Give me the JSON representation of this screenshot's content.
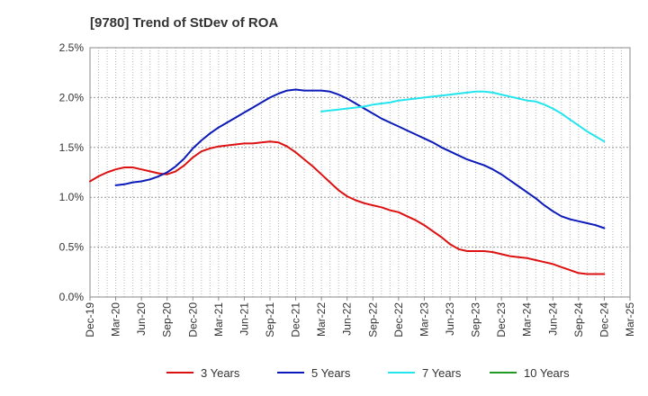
{
  "chart_data": {
    "type": "line",
    "title": "[9780]  Trend of StDev of ROA",
    "xlabel": "",
    "ylabel": "",
    "x_ticks": [
      "Dec-19",
      "Mar-20",
      "Jun-20",
      "Sep-20",
      "Dec-20",
      "Mar-21",
      "Jun-21",
      "Sep-21",
      "Dec-21",
      "Mar-22",
      "Jun-22",
      "Sep-22",
      "Dec-22",
      "Mar-23",
      "Jun-23",
      "Sep-23",
      "Dec-23",
      "Mar-24",
      "Jun-24",
      "Sep-24",
      "Dec-24",
      "Mar-25"
    ],
    "y_ticks": [
      "0.0%",
      "0.5%",
      "1.0%",
      "1.5%",
      "2.0%",
      "2.5%"
    ],
    "ylim": [
      0,
      2.5
    ],
    "y_unit": "%",
    "grid": true,
    "legend_position": "bottom",
    "series": [
      {
        "name": "3 Years",
        "color": "#dd1111",
        "points": [
          [
            "Dec-19",
            1.16
          ],
          [
            "Jan-20",
            1.21
          ],
          [
            "Feb-20",
            1.25
          ],
          [
            "Mar-20",
            1.28
          ],
          [
            "Apr-20",
            1.3
          ],
          [
            "May-20",
            1.3
          ],
          [
            "Jun-20",
            1.28
          ],
          [
            "Jul-20",
            1.26
          ],
          [
            "Aug-20",
            1.24
          ],
          [
            "Sep-20",
            1.23
          ],
          [
            "Oct-20",
            1.26
          ],
          [
            "Nov-20",
            1.32
          ],
          [
            "Dec-20",
            1.4
          ],
          [
            "Jan-21",
            1.46
          ],
          [
            "Feb-21",
            1.49
          ],
          [
            "Mar-21",
            1.51
          ],
          [
            "Apr-21",
            1.52
          ],
          [
            "May-21",
            1.53
          ],
          [
            "Jun-21",
            1.54
          ],
          [
            "Jul-21",
            1.54
          ],
          [
            "Aug-21",
            1.55
          ],
          [
            "Sep-21",
            1.56
          ],
          [
            "Oct-21",
            1.55
          ],
          [
            "Nov-21",
            1.51
          ],
          [
            "Dec-21",
            1.45
          ],
          [
            "Jan-22",
            1.38
          ],
          [
            "Feb-22",
            1.31
          ],
          [
            "Mar-22",
            1.23
          ],
          [
            "Apr-22",
            1.15
          ],
          [
            "May-22",
            1.07
          ],
          [
            "Jun-22",
            1.01
          ],
          [
            "Jul-22",
            0.97
          ],
          [
            "Aug-22",
            0.94
          ],
          [
            "Sep-22",
            0.92
          ],
          [
            "Oct-22",
            0.9
          ],
          [
            "Nov-22",
            0.87
          ],
          [
            "Dec-22",
            0.85
          ],
          [
            "Jan-23",
            0.81
          ],
          [
            "Feb-23",
            0.77
          ],
          [
            "Mar-23",
            0.72
          ],
          [
            "Apr-23",
            0.66
          ],
          [
            "May-23",
            0.6
          ],
          [
            "Jun-23",
            0.53
          ],
          [
            "Jul-23",
            0.48
          ],
          [
            "Aug-23",
            0.46
          ],
          [
            "Sep-23",
            0.46
          ],
          [
            "Oct-23",
            0.46
          ],
          [
            "Nov-23",
            0.45
          ],
          [
            "Dec-23",
            0.43
          ],
          [
            "Jan-24",
            0.41
          ],
          [
            "Feb-24",
            0.4
          ],
          [
            "Mar-24",
            0.39
          ],
          [
            "Apr-24",
            0.37
          ],
          [
            "May-24",
            0.35
          ],
          [
            "Jun-24",
            0.33
          ],
          [
            "Jul-24",
            0.3
          ],
          [
            "Aug-24",
            0.27
          ],
          [
            "Sep-24",
            0.24
          ],
          [
            "Oct-24",
            0.23
          ],
          [
            "Nov-24",
            0.23
          ],
          [
            "Dec-24",
            0.23
          ]
        ]
      },
      {
        "name": "5 Years",
        "color": "#0b1ab8",
        "points": [
          [
            "Mar-20",
            1.12
          ],
          [
            "Apr-20",
            1.13
          ],
          [
            "May-20",
            1.15
          ],
          [
            "Jun-20",
            1.16
          ],
          [
            "Jul-20",
            1.18
          ],
          [
            "Aug-20",
            1.21
          ],
          [
            "Sep-20",
            1.25
          ],
          [
            "Oct-20",
            1.31
          ],
          [
            "Nov-20",
            1.39
          ],
          [
            "Dec-20",
            1.49
          ],
          [
            "Jan-21",
            1.57
          ],
          [
            "Feb-21",
            1.64
          ],
          [
            "Mar-21",
            1.7
          ],
          [
            "Apr-21",
            1.75
          ],
          [
            "May-21",
            1.8
          ],
          [
            "Jun-21",
            1.85
          ],
          [
            "Jul-21",
            1.9
          ],
          [
            "Aug-21",
            1.95
          ],
          [
            "Sep-21",
            2.0
          ],
          [
            "Oct-21",
            2.04
          ],
          [
            "Nov-21",
            2.07
          ],
          [
            "Dec-21",
            2.08
          ],
          [
            "Jan-22",
            2.07
          ],
          [
            "Feb-22",
            2.07
          ],
          [
            "Mar-22",
            2.07
          ],
          [
            "Apr-22",
            2.06
          ],
          [
            "May-22",
            2.03
          ],
          [
            "Jun-22",
            1.99
          ],
          [
            "Jul-22",
            1.94
          ],
          [
            "Aug-22",
            1.89
          ],
          [
            "Sep-22",
            1.84
          ],
          [
            "Oct-22",
            1.79
          ],
          [
            "Nov-22",
            1.75
          ],
          [
            "Dec-22",
            1.71
          ],
          [
            "Jan-23",
            1.67
          ],
          [
            "Feb-23",
            1.63
          ],
          [
            "Mar-23",
            1.59
          ],
          [
            "Apr-23",
            1.55
          ],
          [
            "May-23",
            1.5
          ],
          [
            "Jun-23",
            1.46
          ],
          [
            "Jul-23",
            1.42
          ],
          [
            "Aug-23",
            1.38
          ],
          [
            "Sep-23",
            1.35
          ],
          [
            "Oct-23",
            1.32
          ],
          [
            "Nov-23",
            1.28
          ],
          [
            "Dec-23",
            1.23
          ],
          [
            "Jan-24",
            1.17
          ],
          [
            "Feb-24",
            1.11
          ],
          [
            "Mar-24",
            1.05
          ],
          [
            "Apr-24",
            0.99
          ],
          [
            "May-24",
            0.92
          ],
          [
            "Jun-24",
            0.86
          ],
          [
            "Jul-24",
            0.81
          ],
          [
            "Aug-24",
            0.78
          ],
          [
            "Sep-24",
            0.76
          ],
          [
            "Oct-24",
            0.74
          ],
          [
            "Nov-24",
            0.72
          ],
          [
            "Dec-24",
            0.69
          ]
        ]
      },
      {
        "name": "7 Years",
        "color": "#22e5ee",
        "points": [
          [
            "Mar-22",
            1.86
          ],
          [
            "Apr-22",
            1.87
          ],
          [
            "May-22",
            1.88
          ],
          [
            "Jun-22",
            1.89
          ],
          [
            "Jul-22",
            1.9
          ],
          [
            "Aug-22",
            1.91
          ],
          [
            "Sep-22",
            1.93
          ],
          [
            "Oct-22",
            1.94
          ],
          [
            "Nov-22",
            1.95
          ],
          [
            "Dec-22",
            1.97
          ],
          [
            "Jan-23",
            1.98
          ],
          [
            "Feb-23",
            1.99
          ],
          [
            "Mar-23",
            2.0
          ],
          [
            "Apr-23",
            2.01
          ],
          [
            "May-23",
            2.02
          ],
          [
            "Jun-23",
            2.03
          ],
          [
            "Jul-23",
            2.04
          ],
          [
            "Aug-23",
            2.05
          ],
          [
            "Sep-23",
            2.06
          ],
          [
            "Oct-23",
            2.06
          ],
          [
            "Nov-23",
            2.05
          ],
          [
            "Dec-23",
            2.03
          ],
          [
            "Jan-24",
            2.01
          ],
          [
            "Feb-24",
            1.99
          ],
          [
            "Mar-24",
            1.97
          ],
          [
            "Apr-24",
            1.96
          ],
          [
            "May-24",
            1.93
          ],
          [
            "Jun-24",
            1.89
          ],
          [
            "Jul-24",
            1.84
          ],
          [
            "Aug-24",
            1.78
          ],
          [
            "Sep-24",
            1.72
          ],
          [
            "Oct-24",
            1.66
          ],
          [
            "Nov-24",
            1.61
          ],
          [
            "Dec-24",
            1.56
          ]
        ]
      },
      {
        "name": "10 Years",
        "color": "#229922",
        "points": []
      }
    ]
  }
}
